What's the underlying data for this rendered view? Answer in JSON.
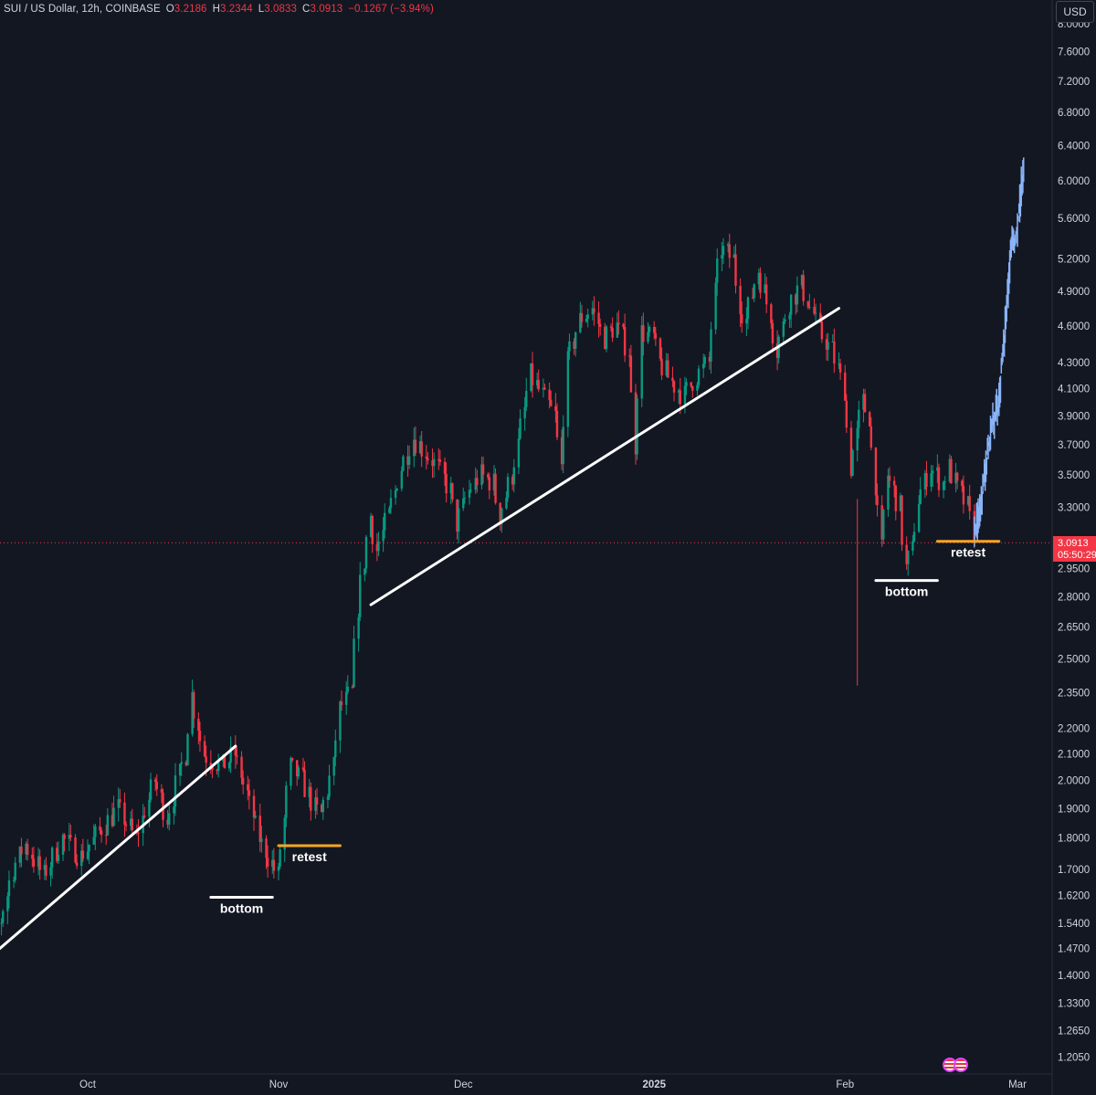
{
  "header": {
    "symbol": "SUI / US Dollar, 12h, COINBASE",
    "open_label": "O",
    "open": "3.2186",
    "high_label": "H",
    "high": "3.2344",
    "low_label": "L",
    "low": "3.0833",
    "close_label": "C",
    "close": "3.0913",
    "change": "−0.1267 (−3.94%)"
  },
  "currency_button": "USD",
  "price_badge": {
    "price": "3.0913",
    "countdown": "05:50:29"
  },
  "chart_data": {
    "type": "candlestick",
    "scale": "log",
    "y_ticks": [
      {
        "label": "8.0000",
        "value": 8.0
      },
      {
        "label": "7.6000",
        "value": 7.6
      },
      {
        "label": "7.2000",
        "value": 7.2
      },
      {
        "label": "6.8000",
        "value": 6.8
      },
      {
        "label": "6.4000",
        "value": 6.4
      },
      {
        "label": "6.0000",
        "value": 6.0
      },
      {
        "label": "5.6000",
        "value": 5.6
      },
      {
        "label": "5.2000",
        "value": 5.2
      },
      {
        "label": "4.9000",
        "value": 4.9
      },
      {
        "label": "4.6000",
        "value": 4.6
      },
      {
        "label": "4.3000",
        "value": 4.3
      },
      {
        "label": "4.1000",
        "value": 4.1
      },
      {
        "label": "3.9000",
        "value": 3.9
      },
      {
        "label": "3.7000",
        "value": 3.7
      },
      {
        "label": "3.5000",
        "value": 3.5
      },
      {
        "label": "3.3000",
        "value": 3.3
      },
      {
        "label": "2.9500",
        "value": 2.95
      },
      {
        "label": "2.8000",
        "value": 2.8
      },
      {
        "label": "2.6500",
        "value": 2.65
      },
      {
        "label": "2.5000",
        "value": 2.5
      },
      {
        "label": "2.3500",
        "value": 2.35
      },
      {
        "label": "2.2000",
        "value": 2.2
      },
      {
        "label": "2.1000",
        "value": 2.1
      },
      {
        "label": "2.0000",
        "value": 2.0
      },
      {
        "label": "1.9000",
        "value": 1.9
      },
      {
        "label": "1.8000",
        "value": 1.8
      },
      {
        "label": "1.7000",
        "value": 1.7
      },
      {
        "label": "1.6200",
        "value": 1.62
      },
      {
        "label": "1.5400",
        "value": 1.54
      },
      {
        "label": "1.4700",
        "value": 1.47
      },
      {
        "label": "1.4000",
        "value": 1.4
      },
      {
        "label": "1.3300",
        "value": 1.33
      },
      {
        "label": "1.2650",
        "value": 1.265
      },
      {
        "label": "1.2050",
        "value": 1.205
      }
    ],
    "x_ticks": [
      {
        "label": "Oct",
        "date": "2024-10-01"
      },
      {
        "label": "Nov",
        "date": "2024-11-01"
      },
      {
        "label": "Dec",
        "date": "2024-12-01"
      },
      {
        "label": "2025",
        "date": "2025-01-01"
      },
      {
        "label": "Feb",
        "date": "2025-02-01"
      },
      {
        "label": "Mar",
        "date": "2025-03-01"
      }
    ],
    "x_range": [
      "2024-09-12",
      "2025-03-02"
    ],
    "current_price": 3.0913,
    "series": [
      {
        "kind": "historical candles (12h)",
        "colors": {
          "up": "#089981",
          "down": "#f23645"
        },
        "path": [
          {
            "date": "2024-09-12",
            "value": 1.21
          },
          {
            "date": "2024-09-14",
            "value": 1.45
          },
          {
            "date": "2024-09-17",
            "value": 1.55
          },
          {
            "date": "2024-09-19",
            "value": 1.7
          },
          {
            "date": "2024-09-21",
            "value": 1.78
          },
          {
            "date": "2024-09-24",
            "value": 1.68
          },
          {
            "date": "2024-09-27",
            "value": 1.8
          },
          {
            "date": "2024-09-30",
            "value": 1.74
          },
          {
            "date": "2024-10-03",
            "value": 1.82
          },
          {
            "date": "2024-10-06",
            "value": 1.9
          },
          {
            "date": "2024-10-09",
            "value": 1.8
          },
          {
            "date": "2024-10-12",
            "value": 2.0
          },
          {
            "date": "2024-10-14",
            "value": 1.87
          },
          {
            "date": "2024-10-17",
            "value": 2.1
          },
          {
            "date": "2024-10-18",
            "value": 2.34
          },
          {
            "date": "2024-10-20",
            "value": 2.1
          },
          {
            "date": "2024-10-23",
            "value": 2.05
          },
          {
            "date": "2024-10-25",
            "value": 2.1
          },
          {
            "date": "2024-10-27",
            "value": 1.95
          },
          {
            "date": "2024-10-29",
            "value": 1.8
          },
          {
            "date": "2024-11-01",
            "value": 1.68
          },
          {
            "date": "2024-11-02",
            "value": 1.86
          },
          {
            "date": "2024-11-03",
            "value": 2.05
          },
          {
            "date": "2024-11-05",
            "value": 2.0
          },
          {
            "date": "2024-11-07",
            "value": 1.9
          },
          {
            "date": "2024-11-08",
            "value": 1.88
          },
          {
            "date": "2024-11-10",
            "value": 2.05
          },
          {
            "date": "2024-11-11",
            "value": 2.28
          },
          {
            "date": "2024-11-13",
            "value": 2.35
          },
          {
            "date": "2024-11-14",
            "value": 2.75
          },
          {
            "date": "2024-11-16",
            "value": 3.25
          },
          {
            "date": "2024-11-17",
            "value": 3.05
          },
          {
            "date": "2024-11-19",
            "value": 3.25
          },
          {
            "date": "2024-11-21",
            "value": 3.55
          },
          {
            "date": "2024-11-23",
            "value": 3.75
          },
          {
            "date": "2024-11-25",
            "value": 3.65
          },
          {
            "date": "2024-11-27",
            "value": 3.55
          },
          {
            "date": "2024-11-29",
            "value": 3.4
          },
          {
            "date": "2024-11-30",
            "value": 3.2
          },
          {
            "date": "2024-12-02",
            "value": 3.4
          },
          {
            "date": "2024-12-04",
            "value": 3.5
          },
          {
            "date": "2024-12-06",
            "value": 3.45
          },
          {
            "date": "2024-12-07",
            "value": 3.25
          },
          {
            "date": "2024-12-09",
            "value": 3.5
          },
          {
            "date": "2024-12-10",
            "value": 3.7
          },
          {
            "date": "2024-12-12",
            "value": 4.2
          },
          {
            "date": "2024-12-14",
            "value": 4.05
          },
          {
            "date": "2024-12-16",
            "value": 3.9
          },
          {
            "date": "2024-12-17",
            "value": 3.55
          },
          {
            "date": "2024-12-18",
            "value": 4.3
          },
          {
            "date": "2024-12-20",
            "value": 4.65
          },
          {
            "date": "2024-12-22",
            "value": 4.75
          },
          {
            "date": "2024-12-24",
            "value": 4.5
          },
          {
            "date": "2024-12-26",
            "value": 4.6
          },
          {
            "date": "2024-12-28",
            "value": 4.4
          },
          {
            "date": "2024-12-29",
            "value": 3.7
          },
          {
            "date": "2024-12-30",
            "value": 4.55
          },
          {
            "date": "2025-01-01",
            "value": 4.5
          },
          {
            "date": "2025-01-02",
            "value": 4.3
          },
          {
            "date": "2025-01-04",
            "value": 4.15
          },
          {
            "date": "2025-01-06",
            "value": 4.05
          },
          {
            "date": "2025-01-08",
            "value": 4.2
          },
          {
            "date": "2025-01-10",
            "value": 4.3
          },
          {
            "date": "2025-01-11",
            "value": 4.9
          },
          {
            "date": "2025-01-12",
            "value": 5.3
          },
          {
            "date": "2025-01-14",
            "value": 5.2
          },
          {
            "date": "2025-01-15",
            "value": 4.8
          },
          {
            "date": "2025-01-16",
            "value": 4.65
          },
          {
            "date": "2025-01-18",
            "value": 5.1
          },
          {
            "date": "2025-01-20",
            "value": 4.7
          },
          {
            "date": "2025-01-21",
            "value": 4.4
          },
          {
            "date": "2025-01-23",
            "value": 4.8
          },
          {
            "date": "2025-01-25",
            "value": 4.95
          },
          {
            "date": "2025-01-27",
            "value": 4.7
          },
          {
            "date": "2025-01-28",
            "value": 4.55
          },
          {
            "date": "2025-01-30",
            "value": 4.4
          },
          {
            "date": "2025-02-01",
            "value": 4.1
          },
          {
            "date": "2025-02-02",
            "value": 3.55
          },
          {
            "date": "2025-02-04",
            "value": 4.0
          },
          {
            "date": "2025-02-05",
            "value": 3.9
          },
          {
            "date": "2025-02-07",
            "value": 3.05
          },
          {
            "date": "2025-02-08",
            "value": 3.5
          },
          {
            "date": "2025-02-10",
            "value": 3.3
          },
          {
            "date": "2025-02-11",
            "value": 2.95
          },
          {
            "date": "2025-02-12",
            "value": 3.05
          },
          {
            "date": "2025-02-13",
            "value": 3.35
          },
          {
            "date": "2025-02-15",
            "value": 3.55
          },
          {
            "date": "2025-02-17",
            "value": 3.45
          },
          {
            "date": "2025-02-18",
            "value": 3.55
          },
          {
            "date": "2025-02-19",
            "value": 3.45
          },
          {
            "date": "2025-02-21",
            "value": 3.3
          },
          {
            "date": "2025-02-22",
            "value": 3.15
          }
        ]
      },
      {
        "kind": "projected path (blue bars)",
        "color": "#8ab4f8",
        "path": [
          {
            "date": "2025-02-22",
            "value": 3.15
          },
          {
            "date": "2025-02-23",
            "value": 3.3
          },
          {
            "date": "2025-02-24",
            "value": 3.6
          },
          {
            "date": "2025-02-25",
            "value": 3.85
          },
          {
            "date": "2025-02-26",
            "value": 4.0
          },
          {
            "date": "2025-02-27",
            "value": 4.6
          },
          {
            "date": "2025-02-28",
            "value": 5.3
          },
          {
            "date": "2025-03-01",
            "value": 5.5
          },
          {
            "date": "2025-03-02",
            "value": 6.2
          }
        ]
      }
    ],
    "annotations": [
      {
        "type": "trendline",
        "color": "#ffffff",
        "from": {
          "date": "2024-09-16",
          "value": 1.46
        },
        "to": {
          "date": "2024-10-25",
          "value": 2.13
        }
      },
      {
        "type": "trendline",
        "color": "#ffffff",
        "from": {
          "date": "2024-11-16",
          "value": 2.76
        },
        "to": {
          "date": "2025-01-31",
          "value": 4.75
        }
      },
      {
        "type": "hline",
        "color": "#ffffff",
        "from": "2024-10-21",
        "to": "2024-10-31",
        "value": 1.615,
        "label": "bottom"
      },
      {
        "type": "hline",
        "color": "#f5a623",
        "from": "2024-11-01",
        "to": "2024-11-11",
        "value": 1.775,
        "label": "retest"
      },
      {
        "type": "hline",
        "color": "#ffffff",
        "from": "2025-02-06",
        "to": "2025-02-16",
        "value": 2.885,
        "label": "bottom"
      },
      {
        "type": "hline",
        "color": "#f5a623",
        "from": "2025-02-16",
        "to": "2025-02-26",
        "value": 3.1,
        "label": "retest"
      }
    ]
  },
  "icons": {
    "event_flags": "us-flag-icon"
  }
}
